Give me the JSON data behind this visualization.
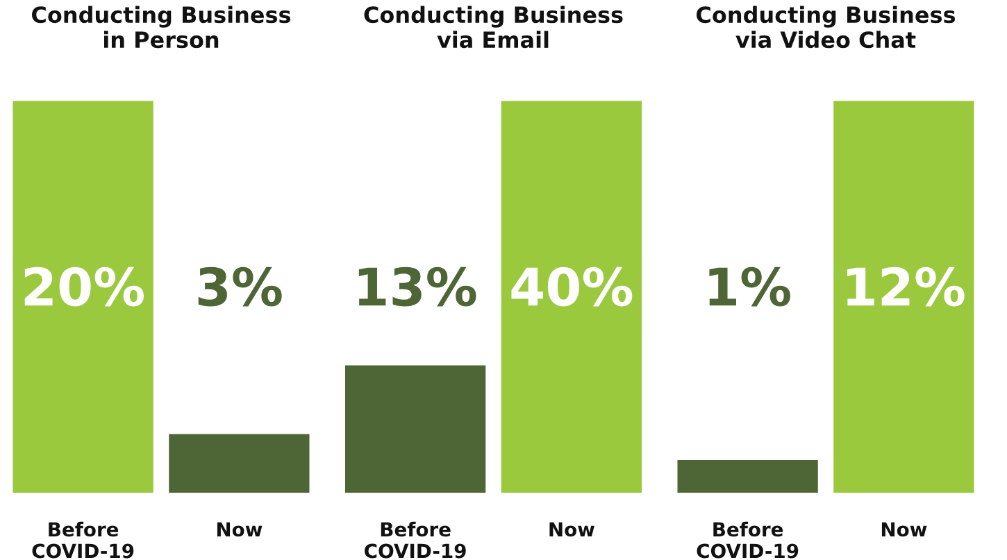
{
  "chart_data": [
    {
      "type": "bar",
      "title": "Conducting Business\nin Person",
      "categories": [
        "Before\nCOVID-19",
        "Now"
      ],
      "values": [
        20,
        3
      ],
      "colors": [
        "#9bc93e",
        "#4e6535"
      ],
      "value_labels": [
        "20%",
        "3%"
      ]
    },
    {
      "type": "bar",
      "title": "Conducting Business\nvia Email",
      "categories": [
        "Before\nCOVID-19",
        "Now"
      ],
      "values": [
        13,
        40
      ],
      "colors": [
        "#4e6535",
        "#9bc93e"
      ],
      "value_labels": [
        "13%",
        "40%"
      ]
    },
    {
      "type": "bar",
      "title": "Conducting Business\nvia Video Chat",
      "categories": [
        "Before\nCOVID-19",
        "Now"
      ],
      "values": [
        1,
        12
      ],
      "colors": [
        "#4e6535",
        "#9bc93e"
      ],
      "value_labels": [
        "1%",
        "12%"
      ]
    }
  ]
}
